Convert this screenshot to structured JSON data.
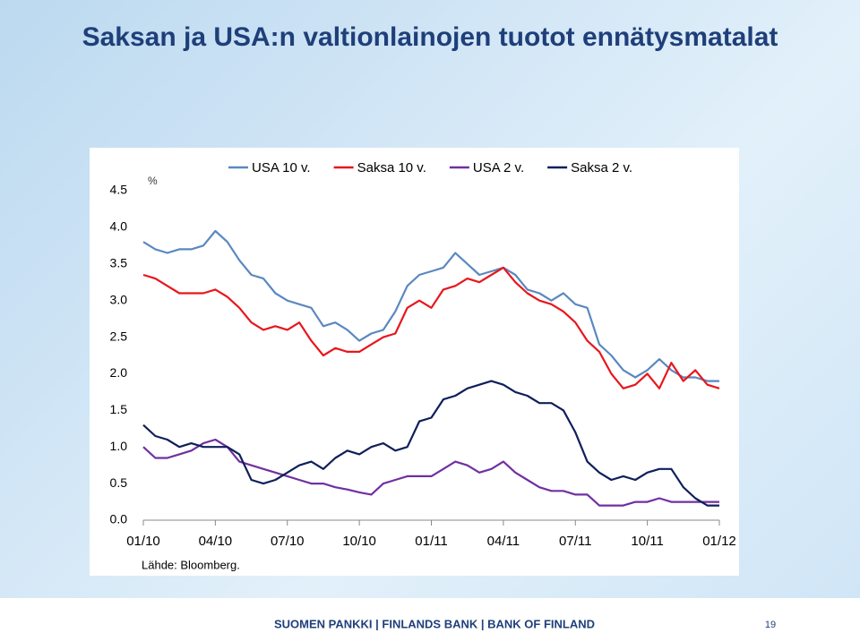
{
  "chart_data": {
    "type": "line",
    "title": "Saksan ja USA:n valtionlainojen tuotot ennätysmatalat",
    "y_label": "%",
    "source": "Lähde: Bloomberg.",
    "x": [
      "01/10",
      null,
      null,
      null,
      null,
      null,
      "04/10",
      null,
      null,
      null,
      null,
      null,
      "07/10",
      null,
      null,
      null,
      null,
      null,
      "10/10",
      null,
      null,
      null,
      null,
      null,
      "01/11",
      null,
      null,
      null,
      null,
      null,
      "04/11",
      null,
      null,
      null,
      null,
      null,
      "07/11",
      null,
      null,
      null,
      null,
      null,
      "10/11",
      null,
      null,
      null,
      null,
      null,
      "01/12"
    ],
    "series": [
      {
        "name": "USA 10 v.",
        "color": "#5b88c0",
        "values": [
          3.8,
          3.7,
          3.65,
          3.7,
          3.7,
          3.75,
          3.95,
          3.8,
          3.55,
          3.35,
          3.3,
          3.1,
          3.0,
          2.95,
          2.9,
          2.65,
          2.7,
          2.6,
          2.45,
          2.55,
          2.6,
          2.85,
          3.2,
          3.35,
          3.4,
          3.45,
          3.65,
          3.5,
          3.35,
          3.4,
          3.45,
          3.35,
          3.15,
          3.1,
          3.0,
          3.1,
          2.95,
          2.9,
          2.4,
          2.25,
          2.05,
          1.95,
          2.05,
          2.2,
          2.05,
          1.95,
          1.95,
          1.9,
          1.9
        ]
      },
      {
        "name": "Saksa 10 v.",
        "color": "#e8161c",
        "values": [
          3.35,
          3.3,
          3.2,
          3.1,
          3.1,
          3.1,
          3.15,
          3.05,
          2.9,
          2.7,
          2.6,
          2.65,
          2.6,
          2.7,
          2.45,
          2.25,
          2.35,
          2.3,
          2.3,
          2.4,
          2.5,
          2.55,
          2.9,
          3.0,
          2.9,
          3.15,
          3.2,
          3.3,
          3.25,
          3.35,
          3.45,
          3.25,
          3.1,
          3.0,
          2.95,
          2.85,
          2.7,
          2.45,
          2.3,
          2.0,
          1.8,
          1.85,
          2.0,
          1.8,
          2.15,
          1.9,
          2.05,
          1.85,
          1.8
        ]
      },
      {
        "name": "USA 2 v.",
        "color": "#7030a0",
        "values": [
          1.0,
          0.85,
          0.85,
          0.9,
          0.95,
          1.05,
          1.1,
          1.0,
          0.8,
          0.75,
          0.7,
          0.65,
          0.6,
          0.55,
          0.5,
          0.5,
          0.45,
          0.42,
          0.38,
          0.35,
          0.5,
          0.55,
          0.6,
          0.6,
          0.6,
          0.7,
          0.8,
          0.75,
          0.65,
          0.7,
          0.8,
          0.65,
          0.55,
          0.45,
          0.4,
          0.4,
          0.35,
          0.35,
          0.2,
          0.2,
          0.2,
          0.25,
          0.25,
          0.3,
          0.25,
          0.25,
          0.25,
          0.25,
          0.25
        ]
      },
      {
        "name": "Saksa 2 v.",
        "color": "#0f1f5a",
        "values": [
          1.3,
          1.15,
          1.1,
          1.0,
          1.05,
          1.0,
          1.0,
          1.0,
          0.9,
          0.55,
          0.5,
          0.55,
          0.65,
          0.75,
          0.8,
          0.7,
          0.85,
          0.95,
          0.9,
          1.0,
          1.05,
          0.95,
          1.0,
          1.35,
          1.4,
          1.65,
          1.7,
          1.8,
          1.85,
          1.9,
          1.85,
          1.75,
          1.7,
          1.6,
          1.6,
          1.5,
          1.2,
          0.8,
          0.65,
          0.55,
          0.6,
          0.55,
          0.65,
          0.7,
          0.7,
          0.45,
          0.3,
          0.2,
          0.2
        ]
      }
    ],
    "ylim": [
      0,
      4.5
    ],
    "yticks": [
      {
        "value": 0,
        "label": "0.0"
      },
      0.5,
      {
        "value": 1,
        "label": "1.0"
      },
      1.5,
      {
        "value": 2,
        "label": "2.0"
      },
      2.5,
      {
        "value": 3,
        "label": "3.0"
      },
      3.5,
      {
        "value": 4,
        "label": "4.0"
      },
      4.5
    ],
    "grid": false
  },
  "footer": "SUOMEN PANKKI | FINLANDS BANK | BANK OF FINLAND",
  "page_number": "19"
}
